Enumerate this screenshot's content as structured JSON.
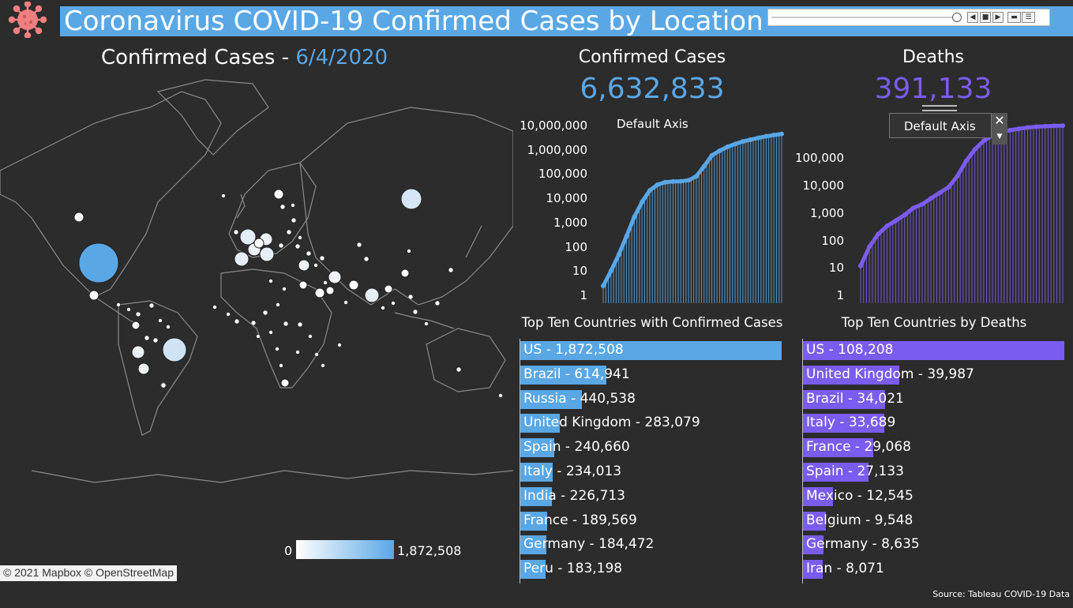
{
  "header": {
    "title": "Coronavirus COVID-19 Confirmed Cases by Location",
    "logo_icon": "virus-icon",
    "playback_controls": [
      "slider",
      "step-back",
      "pause",
      "step-forward",
      "speed-slow",
      "speed-fast"
    ]
  },
  "map": {
    "heading": "Confirmed Cases - ",
    "date": "6/4/2020",
    "legend_min": "0",
    "legend_max": "1,872,508",
    "attribution": "© 2021 Mapbox © OpenStreetMap"
  },
  "kpis": {
    "confirmed_title": "Confirmed Cases",
    "confirmed_value": "6,632,833",
    "deaths_title": "Deaths",
    "deaths_value": "391,133"
  },
  "charts": {
    "confirmed_axis_tag": "Default Axis",
    "confirmed_ticks": [
      "10,000,000",
      "1,000,000",
      "100,000",
      "10,000",
      "1,000",
      "100",
      "10",
      "1"
    ],
    "deaths_ticks": [
      "100,000",
      "10,000",
      "1,000",
      "100",
      "10",
      "1"
    ],
    "deaths_popup_label": "Default Axis",
    "popup_close": "✕",
    "popup_dropdown": "▼"
  },
  "chart_data": [
    {
      "type": "line",
      "scale": "log",
      "ylim": [
        1,
        10000000
      ],
      "y_ticks": [
        1,
        10,
        100,
        1000,
        10000,
        100000,
        1000000,
        10000000
      ],
      "series": [
        {
          "values": [
            5,
            20,
            90,
            500,
            3000,
            12000,
            35000,
            60000,
            75000,
            80000,
            82000,
            90000,
            130000,
            330000,
            900000,
            1400000,
            2000000,
            2600000,
            3300000,
            3900000,
            4600000,
            5300000,
            6000000,
            6632833
          ]
        }
      ],
      "color": "#5aa7e6"
    },
    {
      "type": "line",
      "scale": "log",
      "ylim": [
        1,
        1000000
      ],
      "y_ticks": [
        1,
        10,
        100,
        1000,
        10000,
        100000
      ],
      "series": [
        {
          "values": [
            15,
            60,
            150,
            270,
            400,
            600,
            1000,
            1300,
            2000,
            3000,
            4500,
            10000,
            30000,
            70000,
            130000,
            190000,
            240000,
            280000,
            310000,
            340000,
            360000,
            375000,
            385000,
            391133
          ]
        }
      ],
      "color": "#7b5cf0"
    }
  ],
  "top_confirmed": {
    "title": "Top Ten Countries with Confirmed Cases",
    "max": 1872508,
    "color": "#5aa7e6",
    "rows": [
      {
        "label": "US - 1,872,508",
        "value": 1872508
      },
      {
        "label": "Brazil - 614,941",
        "value": 614941
      },
      {
        "label": "Russia - 440,538",
        "value": 440538
      },
      {
        "label": "United Kingdom - 283,079",
        "value": 283079
      },
      {
        "label": "Spain - 240,660",
        "value": 240660
      },
      {
        "label": "Italy - 234,013",
        "value": 234013
      },
      {
        "label": "India - 226,713",
        "value": 226713
      },
      {
        "label": "France - 189,569",
        "value": 189569
      },
      {
        "label": "Germany - 184,472",
        "value": 184472
      },
      {
        "label": "Peru - 183,198",
        "value": 183198
      }
    ]
  },
  "top_deaths": {
    "title": "Top Ten Countries by Deaths",
    "max": 108208,
    "color": "#7b5cf0",
    "rows": [
      {
        "label": "US - 108,208",
        "value": 108208
      },
      {
        "label": "United Kingdom - 39,987",
        "value": 39987
      },
      {
        "label": "Brazil - 34,021",
        "value": 34021
      },
      {
        "label": "Italy - 33,689",
        "value": 33689
      },
      {
        "label": "France - 29,068",
        "value": 29068
      },
      {
        "label": "Spain - 27,133",
        "value": 27133
      },
      {
        "label": "Mexico - 12,545",
        "value": 12545
      },
      {
        "label": "Belgium - 9,548",
        "value": 9548
      },
      {
        "label": "Germany - 8,635",
        "value": 8635
      },
      {
        "label": "Iran - 8,071",
        "value": 8071
      }
    ]
  },
  "footer": {
    "source": "Source: Tableau COVID-19 Data"
  },
  "colors": {
    "background": "#2c2c2c",
    "confirmed_accent": "#5aa7e6",
    "deaths_accent": "#7b5cf0",
    "title_bar": "#5aa7e6",
    "logo": "#f08080"
  }
}
